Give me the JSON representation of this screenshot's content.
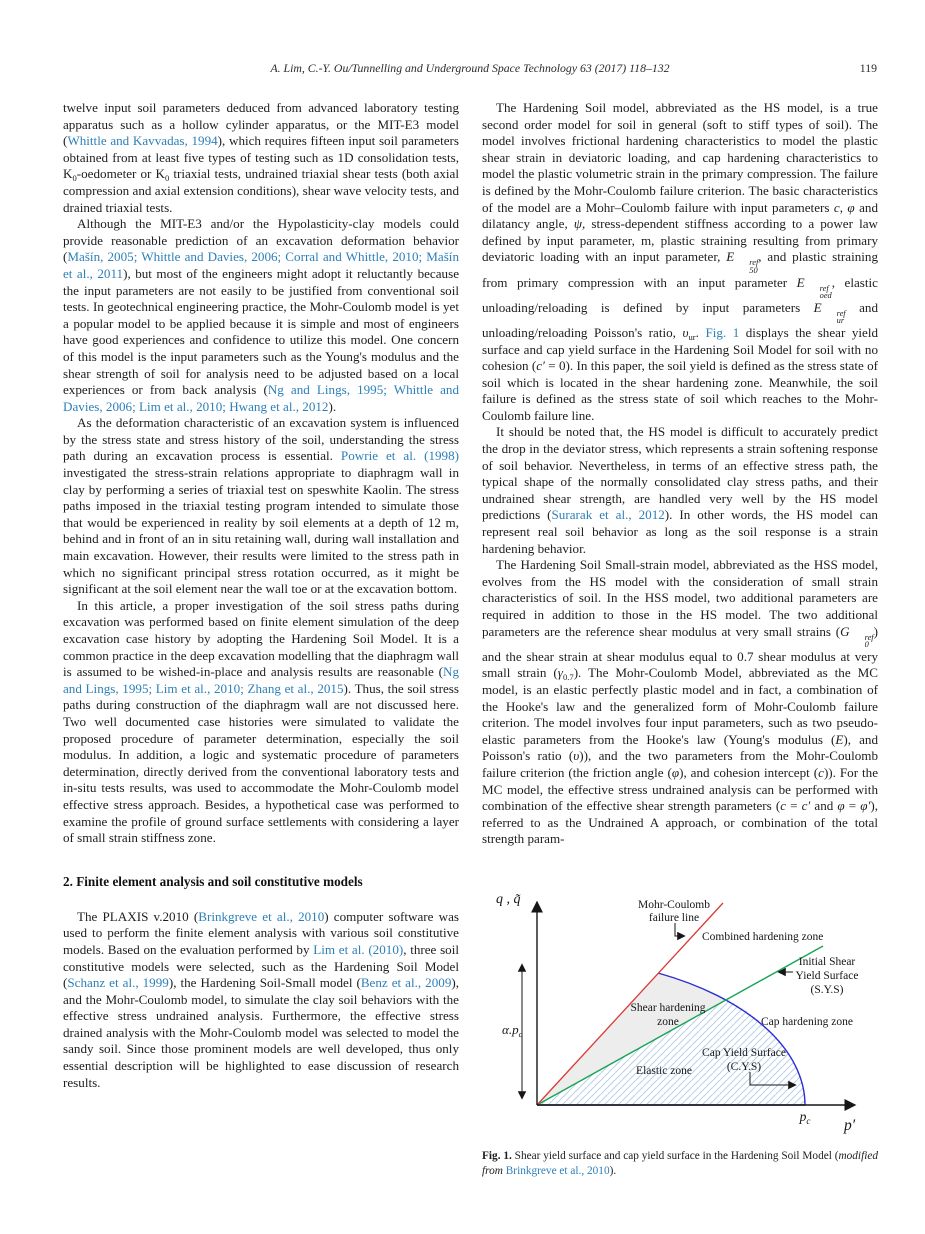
{
  "header": {
    "running_title": "A. Lim, C.-Y. Ou/Tunnelling and Underground Space Technology 63 (2017) 118–132",
    "page_number": "119"
  },
  "left_column": {
    "p1": [
      {
        "t": "twelve input soil parameters deduced from advanced laboratory testing apparatus such as a hollow cylinder apparatus, or the MIT-E3 model ("
      },
      {
        "l": "Whittle and Kavvadas, 1994"
      },
      {
        "t": "), which requires fifteen input soil parameters obtained from at least five types of testing such as 1D consolidation tests, "
      },
      {
        "v": "K",
        "sub": "0",
        "rm": true
      },
      {
        "t": "-oedometer or "
      },
      {
        "v": "K",
        "sub": "0",
        "rm": true
      },
      {
        "t": " triaxial tests, undrained triaxial shear tests (both axial compression and axial extension conditions), shear wave velocity tests, and drained triaxial tests."
      }
    ],
    "p2": [
      {
        "t": "Although the MIT-E3 and/or the Hypolasticity-clay models could provide reasonable prediction of an excavation deformation behavior ("
      },
      {
        "l": "Mašín, 2005; Whittle and Davies, 2006; Corral and Whittle, 2010; Mašín et al., 2011"
      },
      {
        "t": "), but most of the engineers might adopt it reluctantly because the input parameters are not easily to be justified from conventional soil tests. In geotechnical engineering practice, the Mohr-Coulomb model is yet a popular model to be applied because it is simple and most of engineers have good experiences and confidence to utilize this model. One concern of this model is the input parameters such as the Young's modulus and the shear strength of soil for analysis need to be adjusted based on a local experiences or from back analysis ("
      },
      {
        "l": "Ng and Lings, 1995; Whittle and Davies, 2006; Lim et al., 2010; Hwang et al., 2012"
      },
      {
        "t": ")."
      }
    ],
    "p3": [
      {
        "t": "As the deformation characteristic of an excavation system is influenced by the stress state and stress history of the soil, understanding the stress path during an excavation process is essential. "
      },
      {
        "l": "Powrie et al. (1998)"
      },
      {
        "t": " investigated the stress-strain relations appropriate to diaphragm wall in clay by performing a series of triaxial test on speswhite Kaolin. The stress paths imposed in the triaxial testing program intended to simulate those that would be experienced in reality by soil elements at a depth of 12 m, behind and in front of an in situ retaining wall, during wall installation and main excavation. However, their results were limited to the stress path in which no significant principal stress rotation occurred, as it might be significant at the soil element near the wall toe or at the excavation bottom."
      }
    ],
    "p4": [
      {
        "t": "In this article, a proper investigation of the soil stress paths during excavation was performed based on finite element simulation of the deep excavation case history by adopting the Hardening Soil Model. It is a common practice in the deep excavation modelling that the diaphragm wall is assumed to be wished-in-place and analysis results are reasonable ("
      },
      {
        "l": "Ng and Lings, 1995; Lim et al., 2010; Zhang et al., 2015"
      },
      {
        "t": "). Thus, the soil stress paths during construction of the diaphragm wall are not discussed here. Two well documented case histories were simulated to validate the proposed procedure of parameter determination, especially the soil modulus. In addition, a logic and systematic procedure of parameters determination, directly derived from the conventional laboratory tests and in-situ tests results, was used to accommodate the Mohr-Coulomb model effective stress approach. Besides, a hypothetical case was performed to examine the profile of ground surface settlements with considering a layer of small strain stiffness zone."
      }
    ],
    "heading": "2. Finite element analysis and soil constitutive models",
    "p5": [
      {
        "t": "The PLAXIS v.2010 ("
      },
      {
        "l": "Brinkgreve et al., 2010"
      },
      {
        "t": ") computer software was used to perform the finite element analysis with various soil constitutive models. Based on the evaluation performed by "
      },
      {
        "l": "Lim et al. (2010)"
      },
      {
        "t": ", three soil constitutive models were selected, such as the Hardening Soil Model ("
      },
      {
        "l": "Schanz et al., 1999"
      },
      {
        "t": "), the Hardening Soil-Small model ("
      },
      {
        "l": "Benz et al., 2009"
      },
      {
        "t": "), and the Mohr-Coulomb model, to simulate the clay soil behaviors with the effective stress undrained analysis. Furthermore, the effective stress drained analysis with the Mohr-Coulomb model was selected to model the sandy soil. Since those prominent models are well developed, thus only essential description will be highlighted to ease discussion of research results."
      }
    ]
  },
  "right_column": {
    "p1": [
      {
        "t": "The Hardening Soil model, abbreviated as the HS model, is a true second order model for soil in general (soft to stiff types of soil). The model involves frictional hardening characteristics to model the plastic shear strain in deviatoric loading, and cap hardening characteristics to model the plastic volumetric strain in the primary compression. The failure is defined by the Mohr-Coulomb failure criterion. The basic characteristics of the model are a Mohr–Coulomb failure with input parameters "
      },
      {
        "i": "c"
      },
      {
        "t": ", "
      },
      {
        "i": "φ"
      },
      {
        "t": " and dilatancy angle, "
      },
      {
        "i": "ψ"
      },
      {
        "t": ", stress-dependent stiffness according to a power law defined by input parameter, m, plastic straining resulting from primary deviatoric loading with an input parameter, "
      },
      {
        "v": "E",
        "sub": "50",
        "sup": "ref"
      },
      {
        "t": ", and plastic straining from primary compression with an input parameter "
      },
      {
        "v": "E",
        "sub": "oed",
        "sup": "ref"
      },
      {
        "t": ", elastic unloading/reloading is defined by input parameters "
      },
      {
        "v": "E",
        "sub": "ur",
        "sup": "ref"
      },
      {
        "t": " and unloading/reloading Poisson's ratio, "
      },
      {
        "v": "υ",
        "sub": "ur"
      },
      {
        "t": ". "
      },
      {
        "l": "Fig. 1"
      },
      {
        "t": " displays the shear yield surface and cap yield surface in the Hardening Soil Model for soil with no cohesion ("
      },
      {
        "i": "c′"
      },
      {
        "t": " = 0). In this paper, the soil yield is defined as the stress state of soil which is located in the shear hardening zone. Meanwhile, the soil failure is defined as the stress state of soil which reaches to the Mohr-Coulomb failure line."
      }
    ],
    "p2": [
      {
        "t": "It should be noted that, the HS model is difficult to accurately predict the drop in the deviator stress, which represents a strain softening response of soil behavior. Nevertheless, in terms of an effective stress path, the typical shape of the normally consolidated clay stress paths, and their undrained shear strength, are handled very well by the HS model predictions ("
      },
      {
        "l": "Surarak et al., 2012"
      },
      {
        "t": "). In other words, the HS model can represent real soil behavior as long as the soil response is a strain hardening behavior."
      }
    ],
    "p3": [
      {
        "t": "The Hardening Soil Small-strain model, abbreviated as the HSS model, evolves from the HS model with the consideration of small strain characteristics of soil. In the HSS model, two additional parameters are required in addition to those in the HS model. The two additional parameters are the reference shear modulus at very small strains ("
      },
      {
        "v": "G",
        "sub": "0",
        "sup": "ref"
      },
      {
        "t": ") and the shear strain at shear modulus equal to 0.7 shear modulus at very small strain ("
      },
      {
        "v": "γ",
        "sub": "0.7"
      },
      {
        "t": "). The Mohr-Coulomb Model, abbreviated as the MC model, is an elastic perfectly plastic model and in fact, a combination of the Hooke's law and the generalized form of Mohr-Coulomb failure criterion. The model involves four input parameters, such as two pseudo-elastic parameters from the Hooke's law (Young's modulus ("
      },
      {
        "i": "E"
      },
      {
        "t": "), and Poisson's ratio ("
      },
      {
        "i": "υ"
      },
      {
        "t": ")), and the two parameters from the Mohr-Coulomb failure criterion (the friction angle ("
      },
      {
        "i": "φ"
      },
      {
        "t": "), and cohesion intercept ("
      },
      {
        "i": "c"
      },
      {
        "t": ")). For the MC model, the effective stress undrained analysis can be performed with combination of the effective shear strength parameters ("
      },
      {
        "i": "c"
      },
      {
        "t": " = "
      },
      {
        "i": "c′"
      },
      {
        "t": " and "
      },
      {
        "i": "φ"
      },
      {
        "t": " = "
      },
      {
        "i": "φ′"
      },
      {
        "t": "), referred to as the Undrained A approach, or combination of the total strength param-"
      }
    ]
  },
  "figure": {
    "y_axis": "q , q̃",
    "x_axis": "p′",
    "mohr_line1": "Mohr-Coulomb",
    "mohr_line2": "failure line",
    "combined_zone": "Combined hardening zone",
    "sys_line1": "Initial Shear",
    "sys_line2": "Yield Surface",
    "sys_line3": "(S.Y.S)",
    "shear_zone_line1": "Shear hardening",
    "shear_zone_line2": "zone",
    "cap_zone": "Cap hardening zone",
    "cys_line1": "Cap Yield Surface",
    "cys_line2": "(C.Y.S)",
    "elastic_zone": "Elastic zone",
    "alpha_pc_main": "α.p",
    "pc_main": "p",
    "sub_c": "c"
  },
  "figure_caption": [
    {
      "b": "Fig. 1."
    },
    {
      "t": " Shear yield surface and cap yield surface in the Hardening Soil Model ("
    },
    {
      "i": "modified from"
    },
    {
      "t": " "
    },
    {
      "l": "Brinkgreve et al., 2010"
    },
    {
      "t": ")."
    }
  ],
  "colors": {
    "citation_link": "#2d7fb8",
    "mc_failure_line": "#d93a35",
    "initial_shear_yield_surface": "#16a455",
    "cap_yield_surface": "#2b2bd5",
    "elastic_zone_hatch": "#b9cfe8",
    "shear_zone_fill": "#ededed"
  }
}
